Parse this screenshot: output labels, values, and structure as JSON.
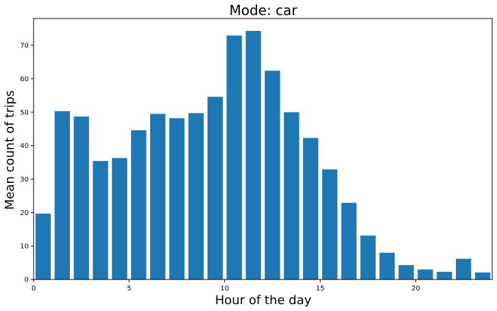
{
  "chart_data": {
    "type": "bar",
    "title": "Mode: car",
    "xlabel": "Hour of the day",
    "ylabel": "Mean count of trips",
    "x": [
      0.5,
      1.5,
      2.5,
      3.5,
      4.5,
      5.5,
      6.5,
      7.5,
      8.5,
      9.5,
      10.5,
      11.5,
      12.5,
      13.5,
      14.5,
      15.5,
      16.5,
      17.5,
      18.5,
      19.5,
      20.5,
      21.5,
      22.5,
      23.5
    ],
    "values": [
      19.7,
      50.3,
      48.7,
      35.4,
      36.3,
      44.6,
      49.5,
      48.2,
      49.7,
      54.6,
      72.9,
      74.3,
      62.4,
      50.0,
      42.3,
      32.9,
      22.9,
      13.1,
      8.0,
      4.3,
      3.0,
      2.3,
      6.2,
      2.1
    ],
    "bar_width": 0.8,
    "xlim": [
      0,
      24
    ],
    "ylim": [
      0,
      78
    ],
    "xticks": [
      0,
      5,
      10,
      15,
      20
    ],
    "yticks": [
      0,
      10,
      20,
      30,
      40,
      50,
      60,
      70
    ],
    "bar_color": "#1f77b4",
    "grid": false,
    "legend": "none"
  }
}
